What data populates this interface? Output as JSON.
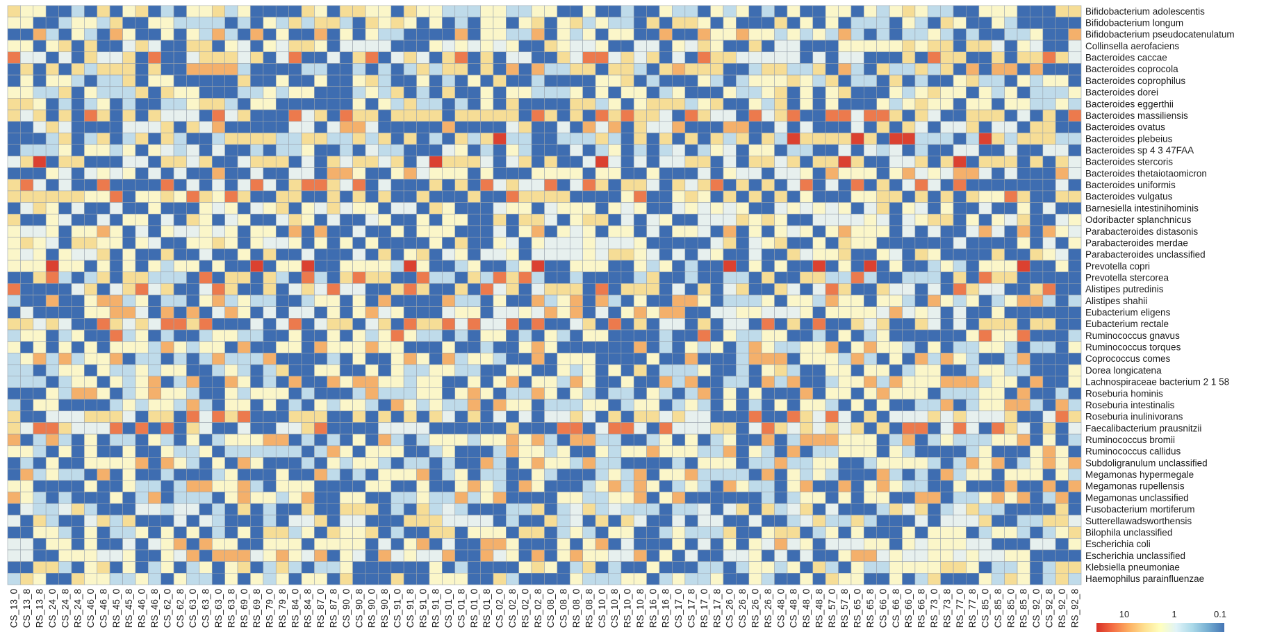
{
  "chart_data": {
    "type": "heatmap",
    "title": "",
    "xlabel": "",
    "ylabel": "",
    "rows": [
      "Bifidobacterium adolescentis",
      "Bifidobacterium longum",
      "Bifidobacterium pseudocatenulatum",
      "Collinsella aerofaciens",
      "Bacteroides caccae",
      "Bacteroides coprocola",
      "Bacteroides coprophilus",
      "Bacteroides dorei",
      "Bacteroides eggerthii",
      "Bacteroides massiliensis",
      "Bacteroides ovatus",
      "Bacteroides plebeius",
      "Bacteroides sp 4 3 47FAA",
      "Bacteroides stercoris",
      "Bacteroides thetaiotaomicron",
      "Bacteroides uniformis",
      "Bacteroides vulgatus",
      "Barnesiella intestinihominis",
      "Odoribacter splanchnicus",
      "Parabacteroides distasonis",
      "Parabacteroides merdae",
      "Parabacteroides unclassified",
      "Prevotella copri",
      "Prevotella stercorea",
      "Alistipes putredinis",
      "Alistipes shahii",
      "Eubacterium eligens",
      "Eubacterium rectale",
      "Ruminococcus gnavus",
      "Ruminococcus torques",
      "Coprococcus comes",
      "Dorea longicatena",
      "Lachnospiraceae bacterium 2 1 58",
      "Roseburia hominis",
      "Roseburia intestinalis",
      "Roseburia inulinivorans",
      "Faecalibacterium prausnitzii",
      "Ruminococcus bromii",
      "Ruminococcus callidus",
      "Subdoligranulum unclassified",
      "Megamonas hypermegale",
      "Megamonas rupellensis",
      "Megamonas unclassified",
      "Fusobacterium mortiferum",
      "Sutterellawadsworthensis",
      "Bilophila unclassified",
      "Escherichia coli",
      "Escherichia unclassified",
      "Klebsiella pneumoniae",
      "Haemophilus parainfluenzae"
    ],
    "columns": [
      "CS_13_0",
      "CS_13_8",
      "RS_13_8",
      "CS_24_0",
      "CS_24_8",
      "RS_24_8",
      "CS_46_0",
      "CS_46_8",
      "RS_45_0",
      "RS_45_8",
      "RS_46_0",
      "RS_46_8",
      "CS_62_0",
      "CS_62_8",
      "CS_63_0",
      "CS_63_8",
      "RS_63_0",
      "RS_63_8",
      "RS_69_0",
      "RS_69_8",
      "RS_79_0",
      "RS_79_8",
      "RS_84_0",
      "RS_84_8",
      "RS_87_0",
      "RS_87_8",
      "CS_90_0",
      "CS_90_8",
      "RS_90_0",
      "RS_90_8",
      "CS_91_0",
      "CS_91_8",
      "RS_91_0",
      "RS_91_8",
      "CS_01_0",
      "CS_01_8",
      "RS_01_0",
      "RS_01_8",
      "CS_02_0",
      "CS_02_8",
      "RS_02_0",
      "RS_02_8",
      "CS_08_0",
      "CS_08_8",
      "RS_08_0",
      "RS_08_8",
      "CS_10_0",
      "CS_10_8",
      "RS_10_0",
      "RS_10_8",
      "RS_16_0",
      "RS_16_8",
      "CS_17_0",
      "CS_17_8",
      "RS_17_0",
      "RS_17_8",
      "CS_26_0",
      "CS_26_8",
      "RS_26_0",
      "RS_26_8",
      "CS_48_0",
      "CS_48_8",
      "RS_48_0",
      "RS_48_8",
      "RS_57_0",
      "RS_57_8",
      "RS_65_0",
      "RS_65_8",
      "CS_66_0",
      "CS_66_8",
      "RS_66_0",
      "RS_66_8",
      "RS_73_0",
      "RS_73_8",
      "RS_77_0",
      "RS_77_8",
      "CS_85_0",
      "CS_85_8",
      "RS_85_0",
      "RS_85_8",
      "CS_92_0",
      "CS_92_8",
      "RS_92_0",
      "RS_92_8"
    ],
    "grid": true,
    "legend": {
      "placement": "bottom-right",
      "ticks": [
        "10",
        "1",
        "0.1"
      ],
      "colors": [
        "#d73027",
        "#f46d43",
        "#fdae61",
        "#fee090",
        "#ffffbf",
        "#e0f3f8",
        "#abd9e9",
        "#74add1",
        "#4575b4"
      ]
    },
    "base_color": "#3e6db1",
    "cell_levels": [
      0,
      1,
      2,
      3,
      4,
      5,
      6,
      7
    ],
    "level_colors": [
      "#3e6db1",
      "#bfdbea",
      "#e7f0ee",
      "#fbf6c9",
      "#f6dd96",
      "#f4b06b",
      "#ec7a4d",
      "#db4130"
    ],
    "row_profiles": [
      [
        1,
        3,
        4
      ],
      [
        1,
        3,
        4
      ],
      [
        1,
        3,
        5
      ],
      [
        2,
        3,
        4
      ],
      [
        2,
        4,
        6
      ],
      [
        1,
        4,
        5
      ],
      [
        1,
        3,
        4
      ],
      [
        1,
        3,
        4
      ],
      [
        1,
        3,
        4
      ],
      [
        2,
        4,
        6
      ],
      [
        2,
        4,
        5
      ],
      [
        1,
        4,
        7
      ],
      [
        1,
        2,
        3
      ],
      [
        2,
        4,
        7
      ],
      [
        2,
        3,
        5
      ],
      [
        2,
        4,
        6
      ],
      [
        3,
        4,
        6
      ],
      [
        2,
        3,
        4
      ],
      [
        2,
        3,
        4
      ],
      [
        2,
        3,
        5
      ],
      [
        2,
        3,
        4
      ],
      [
        2,
        3,
        4
      ],
      [
        1,
        3,
        7
      ],
      [
        1,
        4,
        6
      ],
      [
        2,
        4,
        6
      ],
      [
        1,
        3,
        5
      ],
      [
        2,
        3,
        5
      ],
      [
        2,
        4,
        6
      ],
      [
        1,
        3,
        6
      ],
      [
        1,
        3,
        5
      ],
      [
        1,
        3,
        5
      ],
      [
        1,
        3,
        4
      ],
      [
        1,
        3,
        5
      ],
      [
        1,
        3,
        5
      ],
      [
        1,
        3,
        5
      ],
      [
        2,
        4,
        6
      ],
      [
        2,
        4,
        6
      ],
      [
        1,
        3,
        5
      ],
      [
        1,
        3,
        5
      ],
      [
        1,
        3,
        5
      ],
      [
        1,
        3,
        5
      ],
      [
        1,
        3,
        5
      ],
      [
        1,
        3,
        5
      ],
      [
        1,
        2,
        4
      ],
      [
        1,
        2,
        4
      ],
      [
        1,
        3,
        4
      ],
      [
        2,
        3,
        5
      ],
      [
        2,
        3,
        5
      ],
      [
        1,
        3,
        4
      ],
      [
        1,
        3,
        4
      ]
    ]
  }
}
